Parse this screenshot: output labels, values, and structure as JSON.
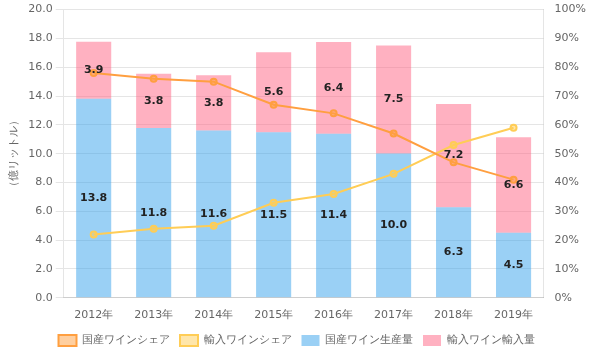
{
  "chart_data": {
    "type": "bar",
    "stacked": true,
    "categories": [
      "2012年",
      "2013年",
      "2014年",
      "2015年",
      "2016年",
      "2017年",
      "2018年",
      "2019年"
    ],
    "ylabel": "（億リットル）",
    "ylim": [
      0,
      20.0
    ],
    "yticks": [
      {
        "value": 0.0,
        "label": "0.0"
      },
      {
        "value": 2.0,
        "label": "2.0"
      },
      {
        "value": 4.0,
        "label": "4.0"
      },
      {
        "value": 6.0,
        "label": "6.0"
      },
      {
        "value": 8.0,
        "label": "8.0"
      },
      {
        "value": 10.0,
        "label": "10.0"
      },
      {
        "value": 12.0,
        "label": "12.0"
      },
      {
        "value": 14.0,
        "label": "14.0"
      },
      {
        "value": 16.0,
        "label": "16.0"
      },
      {
        "value": 18.0,
        "label": "18.0"
      },
      {
        "value": 20.0,
        "label": "20.0"
      }
    ],
    "y2lim": [
      0,
      1.0
    ],
    "y2ticks": [
      {
        "value": 0.0,
        "label": "0%"
      },
      {
        "value": 0.1,
        "label": "10%"
      },
      {
        "value": 0.2,
        "label": "20%"
      },
      {
        "value": 0.3,
        "label": "30%"
      },
      {
        "value": 0.4,
        "label": "40%"
      },
      {
        "value": 0.5,
        "label": "50%"
      },
      {
        "value": 0.6,
        "label": "60%"
      },
      {
        "value": 0.7,
        "label": "70%"
      },
      {
        "value": 0.8,
        "label": "80%"
      },
      {
        "value": 0.9,
        "label": "90%"
      },
      {
        "value": 1.0,
        "label": "100%"
      }
    ],
    "grid": true,
    "legend": "bottom",
    "series": [
      {
        "name": "国産ワイン生産量",
        "type": "bar",
        "data_labels": true,
        "values": [
          13.82,
          11.78,
          11.61,
          11.48,
          11.376,
          10.01,
          6.29,
          4.51
        ],
        "value_labels": [
          "13.8",
          "11.8",
          "11.6",
          "11.5",
          "11.4",
          "10.0",
          "6.3",
          "4.5"
        ]
      },
      {
        "name": "輸入ワイン輸入量",
        "type": "bar",
        "data_labels": true,
        "values": [
          3.943,
          3.767,
          3.841,
          5.553,
          6.381,
          7.494,
          7.165,
          6.623
        ],
        "value_labels": [
          "3.9",
          "3.8",
          "3.8",
          "5.6",
          "6.4",
          "7.5",
          "7.2",
          "6.6"
        ]
      },
      {
        "name": "国産ワインシェア",
        "type": "line",
        "axis": "y2",
        "marker": "circle",
        "values": [
          0.78,
          0.76,
          0.75,
          0.67,
          0.64,
          0.57,
          0.47,
          0.41
        ]
      },
      {
        "name": "輸入ワインシェア",
        "type": "line",
        "axis": "y2",
        "marker": "circle",
        "values": [
          0.22,
          0.24,
          0.25,
          0.33,
          0.36,
          0.43,
          0.53,
          0.59
        ]
      }
    ]
  }
}
